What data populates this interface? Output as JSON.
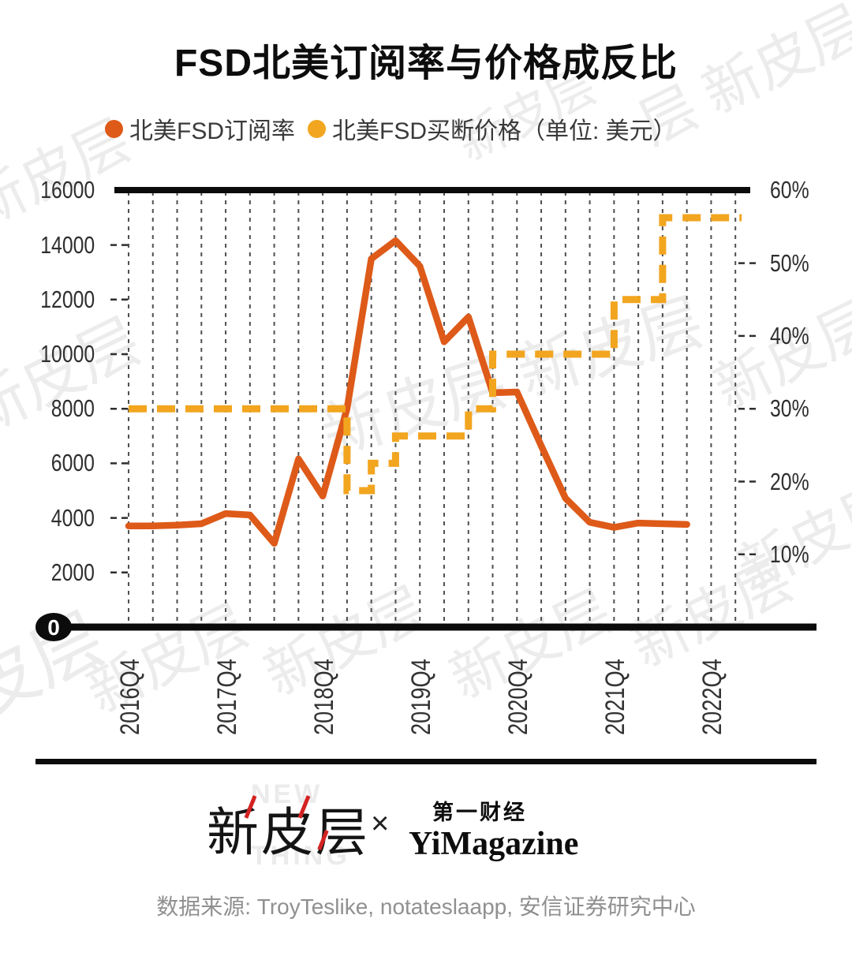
{
  "title": "FSD北美订阅率与价格成反比",
  "legend": {
    "items": [
      {
        "label": "北美FSD订阅率",
        "color": "#DE5A19"
      },
      {
        "label": "北美FSD买断价格（单位: 美元）",
        "color": "#F2A51F"
      }
    ]
  },
  "axes": {
    "left_labels": [
      "16000",
      "14000",
      "12000",
      "10000",
      "8000",
      "6000",
      "4000",
      "2000"
    ],
    "left_zero": "0",
    "right_labels": [
      "60%",
      "50%",
      "40%",
      "30%",
      "20%",
      "10%"
    ],
    "x_labels": [
      "2016Q4",
      "2017Q4",
      "2018Q4",
      "2019Q4",
      "2020Q4",
      "2021Q4",
      "2022Q4"
    ]
  },
  "watermark": {
    "single": "新皮层",
    "pair": "层 新皮层",
    "corner": "皮层",
    "long": "新皮层 新皮层"
  },
  "footer": {
    "watermark_new": "NEW",
    "watermark_thing": "THING",
    "logo_left": "新皮层",
    "multiply": "×",
    "logo_right_top": "第一财经",
    "logo_right_bottom": "YiMagazine",
    "source": "数据来源: TroyTeslike, notateslaapp, 安信证券研究中心"
  },
  "chart_data": {
    "type": "line",
    "title": "FSD北美订阅率与价格成反比",
    "x_quarters": [
      "2016Q4",
      "2017Q1",
      "2017Q2",
      "2017Q3",
      "2017Q4",
      "2018Q1",
      "2018Q2",
      "2018Q3",
      "2018Q4",
      "2019Q1",
      "2019Q2",
      "2019Q3",
      "2019Q4",
      "2020Q1",
      "2020Q2",
      "2020Q3",
      "2020Q4",
      "2021Q1",
      "2021Q2",
      "2021Q3",
      "2021Q4",
      "2022Q1",
      "2022Q2",
      "2022Q3",
      "2022Q4",
      "2023Q1"
    ],
    "left_axis": {
      "min": 0,
      "max": 16000,
      "tick_step": 2000
    },
    "right_axis": {
      "min_pct": 0,
      "max_pct": 60,
      "tick_step_pct": 10,
      "note": "right 60% aligns with left 16000; both axes share the same baseline"
    },
    "grid": "vertical dashed quarterly gridlines",
    "legend_position": "top",
    "series": [
      {
        "name": "北美FSD订阅率",
        "axis": "right",
        "unit": "%",
        "style": "solid",
        "color": "#DE5A19",
        "x": [
          "2016Q4",
          "2017Q1",
          "2017Q2",
          "2017Q3",
          "2017Q4",
          "2018Q1",
          "2018Q2",
          "2018Q3",
          "2018Q4",
          "2019Q1",
          "2019Q2",
          "2019Q3",
          "2019Q4",
          "2020Q1",
          "2020Q2",
          "2020Q3",
          "2020Q4",
          "2021Q1",
          "2021Q2",
          "2021Q3",
          "2021Q4",
          "2022Q1",
          "2022Q2",
          "2022Q3"
        ],
        "values": [
          13.9,
          13.9,
          14.0,
          14.2,
          15.6,
          15.4,
          11.5,
          23.1,
          18.0,
          30.0,
          50.6,
          53.1,
          49.6,
          39.2,
          42.6,
          32.2,
          32.3,
          24.9,
          17.7,
          14.4,
          13.7,
          14.3,
          14.2,
          14.1
        ]
      },
      {
        "name": "北美FSD买断价格",
        "axis": "left",
        "unit": "USD",
        "style": "dashed",
        "color": "#F2A51F",
        "steps": [
          {
            "usd": 8000,
            "from": "2016Q4",
            "to": "2019Q1"
          },
          {
            "usd": 5000,
            "from": "2019Q1",
            "to": "2019Q2"
          },
          {
            "usd": 6000,
            "from": "2019Q2",
            "to": "2019Q3"
          },
          {
            "usd": 7000,
            "from": "2019Q3",
            "to": "2020Q2"
          },
          {
            "usd": 8000,
            "from": "2020Q2",
            "to": "2020Q3"
          },
          {
            "usd": 10000,
            "from": "2020Q3",
            "to": "2021Q4"
          },
          {
            "usd": 12000,
            "from": "2021Q4",
            "to": "2022Q2"
          },
          {
            "usd": 15000,
            "from": "2022Q2",
            "to": "2023Q1"
          }
        ]
      }
    ]
  }
}
